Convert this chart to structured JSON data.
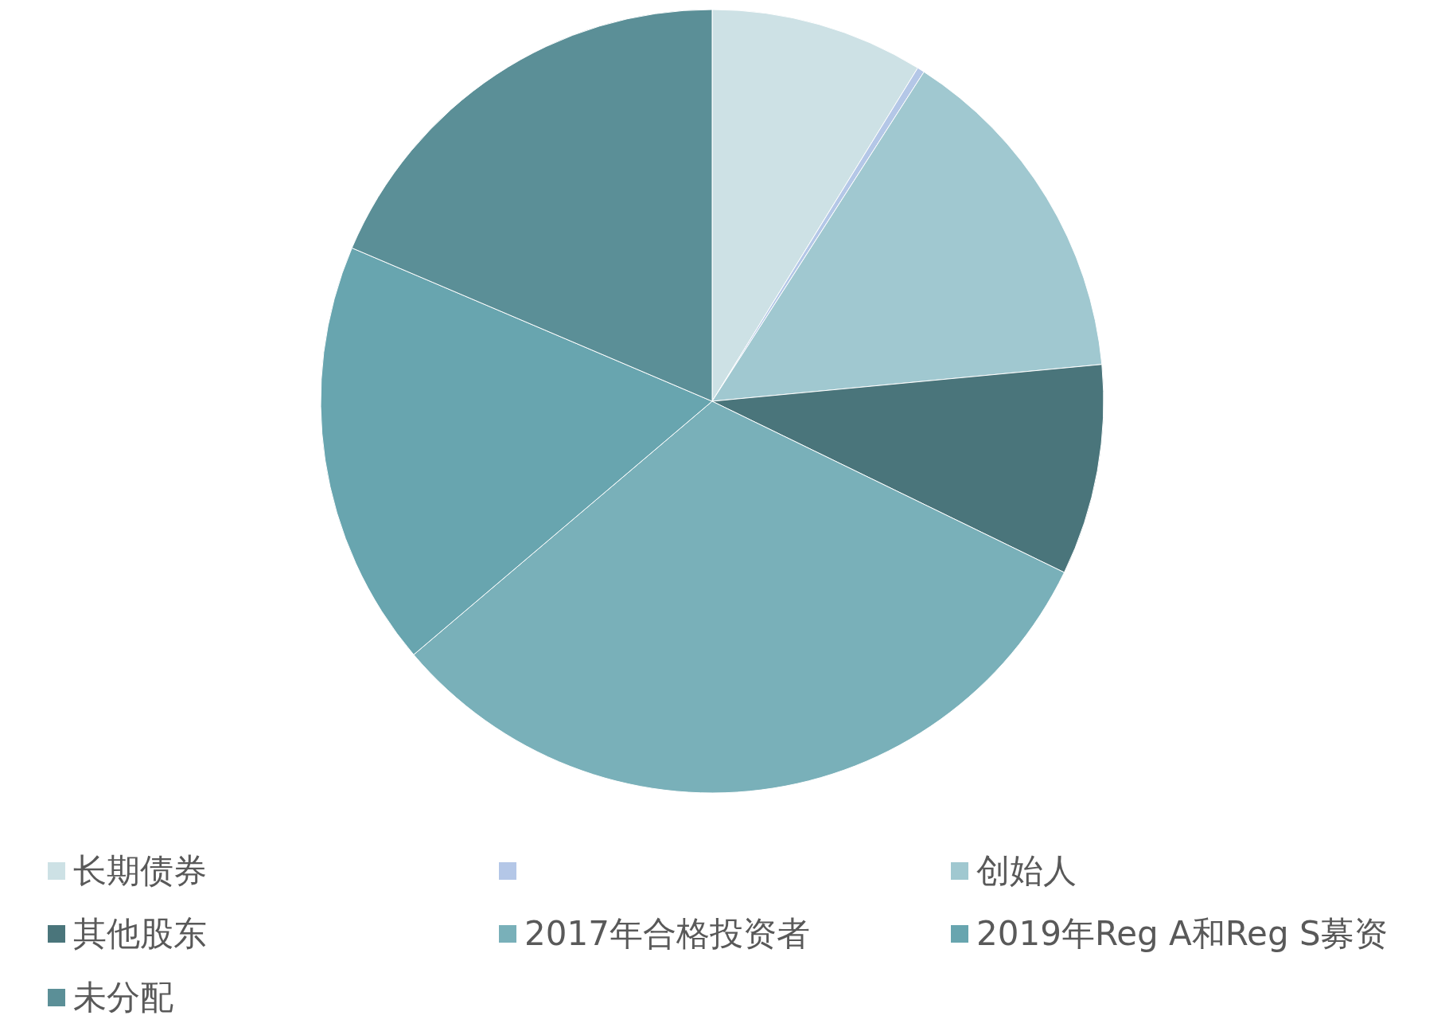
{
  "chart_data": {
    "type": "pie",
    "categories": [
      "长期债券",
      null,
      "创始人",
      "其他股东",
      "2017年合格投资者",
      "2019年Reg A和Reg S募资",
      "未分配"
    ],
    "values": [
      8.8,
      0.3,
      14.4,
      8.7,
      31.6,
      17.6,
      18.6
    ],
    "colors": [
      "#cde1e5",
      "#b4c7e7",
      "#a0c8d0",
      "#4a757b",
      "#79b0b9",
      "#68a5af",
      "#5b8f97"
    ],
    "legend": "bottom"
  }
}
